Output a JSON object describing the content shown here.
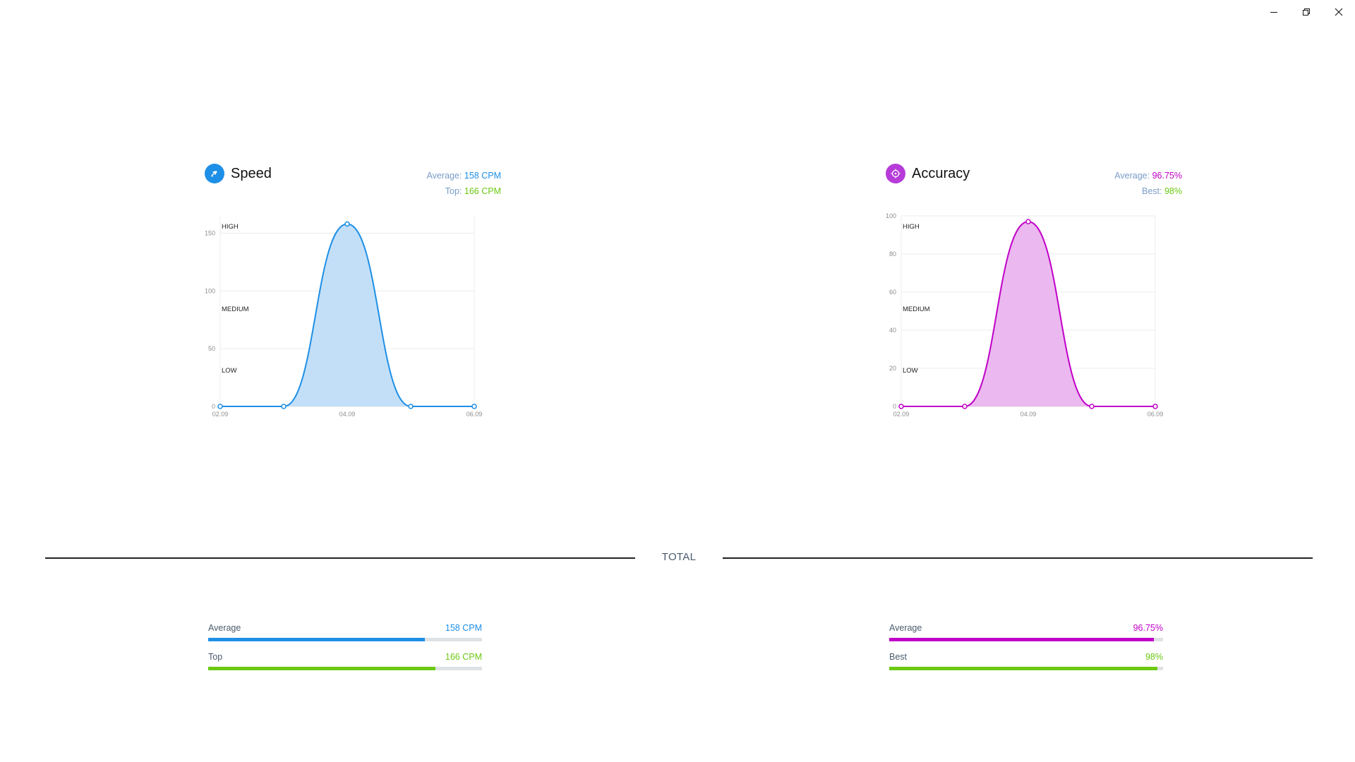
{
  "window": {
    "controls": [
      "minimize-icon",
      "restore-icon",
      "close-icon"
    ]
  },
  "speed": {
    "title": "Speed",
    "icon": "speed-icon",
    "color": "#1e8fe6",
    "average_label": "Average:",
    "average_value": "158 CPM",
    "top_label": "Top:",
    "top_value": "166 CPM"
  },
  "accuracy": {
    "title": "Accuracy",
    "icon": "target-icon",
    "color": "#c000c8",
    "average_label": "Average:",
    "average_value": "96.75%",
    "best_label": "Best:",
    "best_value": "98%"
  },
  "total": {
    "label": "TOTAL",
    "speed": [
      {
        "label": "Average",
        "value": "158 CPM",
        "percent": 79,
        "color": "#1e8fe6"
      },
      {
        "label": "Top",
        "value": "166 CPM",
        "percent": 83,
        "color": "#6cc912"
      }
    ],
    "accuracy": [
      {
        "label": "Average",
        "value": "96.75%",
        "percent": 96.75,
        "color": "#c000c8"
      },
      {
        "label": "Best",
        "value": "98%",
        "percent": 98,
        "color": "#6cc912"
      }
    ]
  },
  "chart_data": [
    {
      "type": "area",
      "id": "speed",
      "x": [
        "02.09",
        "03.09",
        "04.09",
        "05.09",
        "06.09"
      ],
      "xticks": [
        "02.09",
        "04.09",
        "06.09"
      ],
      "values": [
        0,
        0,
        158,
        0,
        0
      ],
      "ylim": [
        0,
        165
      ],
      "yticks": [
        0,
        50,
        100,
        150
      ],
      "band_labels": [
        "HIGH",
        "MEDIUM",
        "LOW"
      ],
      "color": "#1e8fe6",
      "fill": "#c3dff8"
    },
    {
      "type": "area",
      "id": "accuracy",
      "x": [
        "02.09",
        "03.09",
        "04.09",
        "05.09",
        "06.09"
      ],
      "xticks": [
        "02.09",
        "04.09",
        "06.09"
      ],
      "values": [
        0,
        0,
        97,
        0,
        0
      ],
      "ylim": [
        0,
        100
      ],
      "yticks": [
        0,
        20,
        40,
        60,
        80,
        100
      ],
      "band_labels": [
        "HIGH",
        "MEDIUM",
        "LOW"
      ],
      "color": "#c000c8",
      "fill": "#ebb8ef"
    }
  ]
}
